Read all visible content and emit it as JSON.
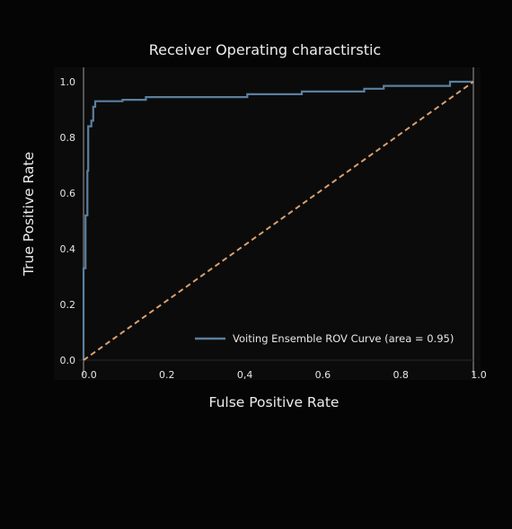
{
  "chart_data": {
    "type": "line",
    "title": "Receiver Operating charactirstic",
    "xlabel": "Fulse Positive Rate",
    "ylabel": "True Positive Rate",
    "xlim": [
      0,
      1
    ],
    "ylim": [
      0,
      1
    ],
    "x_tick_labels": [
      "0.0",
      "0.2",
      "0,4",
      "0.6",
      "0.8",
      "1.0"
    ],
    "y_tick_labels": [
      "0.0",
      "0.2",
      "0.4",
      "0.6",
      "0.8",
      "1.0"
    ],
    "grid": false,
    "legend_position": "lower-right",
    "series": [
      {
        "name": "Voiting Ensemble ROV Curve (area = 0.95)",
        "color": "#5b7f9e",
        "style": "solid",
        "x": [
          0,
          0,
          0.005,
          0.005,
          0.01,
          0.01,
          0.012,
          0.012,
          0.02,
          0.02,
          0.025,
          0.025,
          0.03,
          0.03,
          0.1,
          0.1,
          0.16,
          0.16,
          0.42,
          0.42,
          0.56,
          0.56,
          0.72,
          0.72,
          0.77,
          0.77,
          0.94,
          0.94,
          1.0
        ],
        "y": [
          0,
          0.33,
          0.33,
          0.52,
          0.52,
          0.68,
          0.68,
          0.84,
          0.84,
          0.86,
          0.86,
          0.91,
          0.91,
          0.93,
          0.93,
          0.935,
          0.935,
          0.945,
          0.945,
          0.955,
          0.955,
          0.965,
          0.965,
          0.975,
          0.975,
          0.985,
          0.985,
          1.0,
          1.0
        ]
      },
      {
        "name": "",
        "color": "#d9a070",
        "style": "dashed",
        "x": [
          0,
          1
        ],
        "y": [
          0,
          1
        ]
      }
    ]
  }
}
